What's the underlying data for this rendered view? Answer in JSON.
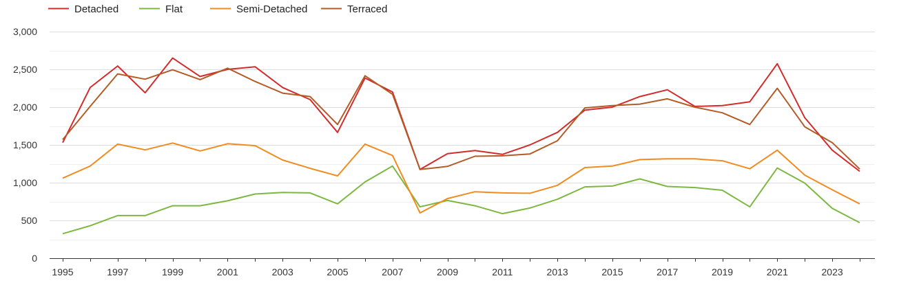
{
  "chart_data": {
    "type": "line",
    "title": "",
    "xlabel": "",
    "ylabel": "",
    "x": [
      1995,
      1996,
      1997,
      1998,
      1999,
      2000,
      2001,
      2002,
      2003,
      2004,
      2005,
      2006,
      2007,
      2008,
      2009,
      2010,
      2011,
      2012,
      2013,
      2014,
      2015,
      2016,
      2017,
      2018,
      2019,
      2020,
      2021,
      2022,
      2023,
      2024
    ],
    "x_tick_labels": [
      "1995",
      "1997",
      "1999",
      "2001",
      "2003",
      "2005",
      "2007",
      "2009",
      "2011",
      "2013",
      "2015",
      "2017",
      "2019",
      "2021",
      "2023"
    ],
    "y_tick_labels": [
      "0",
      "500",
      "1,000",
      "1,500",
      "2,000",
      "2,500",
      "3,000"
    ],
    "xlim": [
      1995,
      2024
    ],
    "ylim": [
      0,
      3000
    ],
    "y_ticks": [
      0,
      500,
      1000,
      1500,
      2000,
      2500,
      3000
    ],
    "grid": true,
    "legend_position": "top-left",
    "series": [
      {
        "name": "Detached",
        "color": "#d42a2a",
        "values": [
          1530,
          2260,
          2545,
          2190,
          2650,
          2405,
          2500,
          2535,
          2260,
          2100,
          1665,
          2385,
          2200,
          1175,
          1385,
          1425,
          1375,
          1500,
          1665,
          1960,
          2000,
          2140,
          2230,
          2010,
          2020,
          2070,
          2575,
          1860,
          1430,
          1150
        ]
      },
      {
        "name": "Flat",
        "color": "#7cb83f",
        "values": [
          325,
          430,
          565,
          565,
          695,
          695,
          760,
          850,
          870,
          865,
          720,
          1010,
          1220,
          680,
          765,
          695,
          590,
          665,
          780,
          945,
          955,
          1050,
          950,
          935,
          900,
          680,
          1195,
          995,
          660,
          470
        ]
      },
      {
        "name": "Semi-Detached",
        "color": "#f28a1e",
        "values": [
          1060,
          1220,
          1510,
          1435,
          1525,
          1420,
          1515,
          1490,
          1300,
          1190,
          1090,
          1510,
          1360,
          600,
          790,
          880,
          865,
          860,
          965,
          1200,
          1220,
          1305,
          1315,
          1315,
          1290,
          1185,
          1430,
          1100,
          905,
          720
        ]
      },
      {
        "name": "Terraced",
        "color": "#b35a25",
        "values": [
          1570,
          2010,
          2440,
          2370,
          2495,
          2365,
          2515,
          2340,
          2185,
          2140,
          1770,
          2415,
          2170,
          1175,
          1215,
          1350,
          1355,
          1380,
          1555,
          1990,
          2020,
          2040,
          2110,
          2000,
          1925,
          1770,
          2250,
          1740,
          1530,
          1180
        ]
      }
    ]
  }
}
